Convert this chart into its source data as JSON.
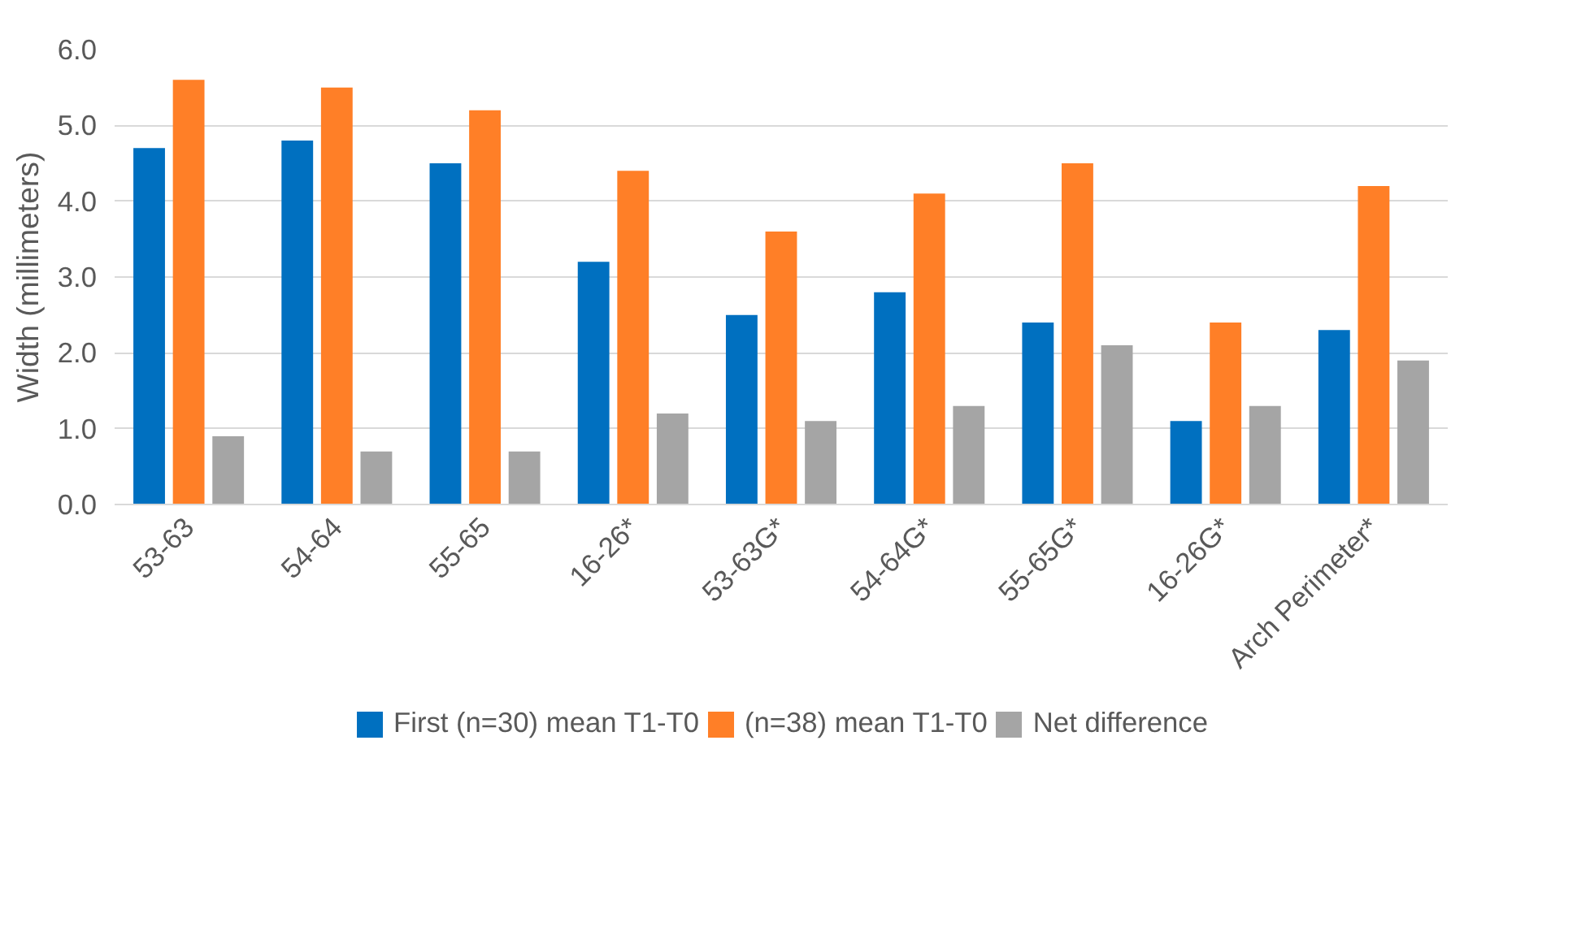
{
  "chart_data": {
    "type": "bar",
    "ylabel": "Width (millimeters)",
    "categories": [
      "53-63",
      "54-64",
      "55-65",
      "16-26*",
      "53-63G*",
      "54-64G*",
      "55-65G*",
      "16-26G*",
      "Arch Perimeter*"
    ],
    "series": [
      {
        "name": "First (n=30) mean T1-T0",
        "color": "#0070c0",
        "values": [
          4.7,
          4.8,
          4.5,
          3.2,
          2.5,
          2.8,
          2.4,
          1.1,
          2.3
        ]
      },
      {
        "name": "(n=38) mean T1-T0",
        "color": "#ff7f27",
        "values": [
          5.6,
          5.5,
          5.2,
          4.4,
          3.6,
          4.1,
          4.5,
          2.4,
          4.2
        ]
      },
      {
        "name": "Net difference",
        "color": "#a5a5a5",
        "values": [
          0.9,
          0.7,
          0.7,
          1.2,
          1.1,
          1.3,
          2.1,
          1.3,
          1.9
        ]
      }
    ],
    "ylim": [
      0,
      6
    ],
    "yticks": [
      {
        "value": 0,
        "label": "0.0"
      },
      {
        "value": 1,
        "label": "1.0"
      },
      {
        "value": 2,
        "label": "2.0"
      },
      {
        "value": 3,
        "label": "3.0"
      },
      {
        "value": 4,
        "label": "4.0"
      },
      {
        "value": 5,
        "label": "5.0"
      },
      {
        "value": 6,
        "label": "6.0"
      }
    ],
    "grid": "y",
    "legend": "bottom"
  }
}
